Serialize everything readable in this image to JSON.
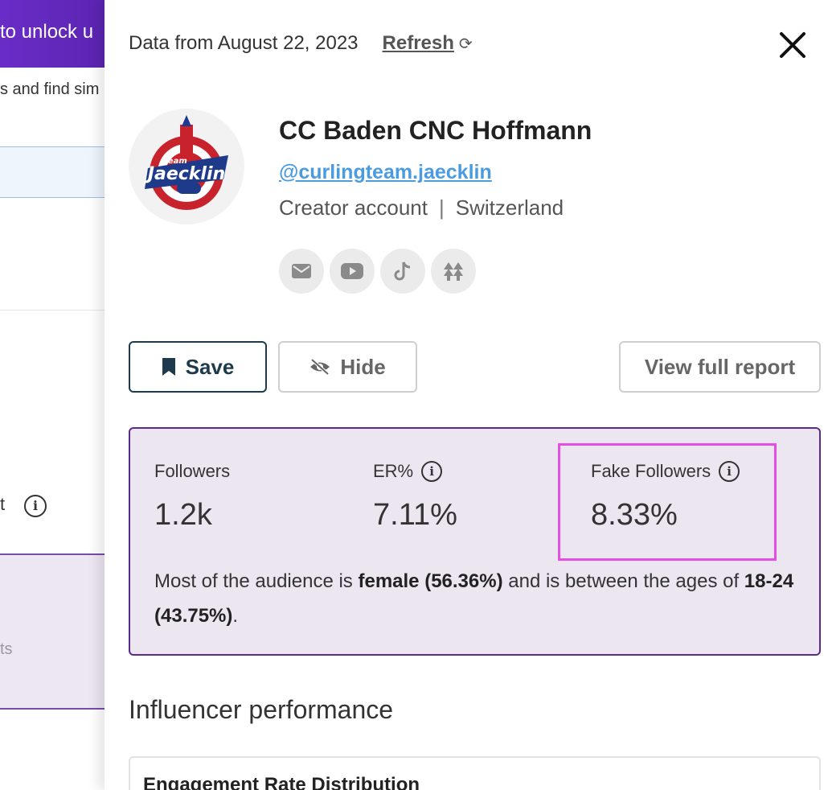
{
  "background": {
    "banner_text": "to unlock u",
    "subtitle": "s and find sim",
    "metric_fragment": "t",
    "card_fragment": "ts"
  },
  "drawer": {
    "data_from": "Data from August 22, 2023",
    "refresh_label": "Refresh",
    "profile": {
      "name": "CC Baden CNC Hoffmann",
      "handle": "@curlingteam.jaecklin",
      "account_type": "Creator account",
      "separator": "|",
      "country": "Switzerland",
      "avatar_text": "Team Jaecklin"
    },
    "socials": [
      "email-icon",
      "youtube-icon",
      "tiktok-icon",
      "linktree-icon"
    ],
    "actions": {
      "save": "Save",
      "hide": "Hide",
      "view_report": "View full report"
    },
    "stats": {
      "followers_label": "Followers",
      "followers_value": "1.2k",
      "er_label": "ER%",
      "er_value": "7.11%",
      "fake_label": "Fake Followers",
      "fake_value": "8.33%"
    },
    "summary": {
      "p1": "Most of the audience is ",
      "gender": "female (56.36%)",
      "p2": " and is between the ages of ",
      "age": "18-24 (43.75%)",
      "p3": "."
    },
    "performance_title": "Influencer performance",
    "engagement_title": "Engagement Rate Distribution"
  },
  "colors": {
    "banner": "#6a2cc7",
    "stats_bg": "#ece6f1",
    "stats_border": "#5c2a8c",
    "highlight": "#e54ee6",
    "link": "#4a9be0",
    "save_border": "#1f3a4d"
  }
}
